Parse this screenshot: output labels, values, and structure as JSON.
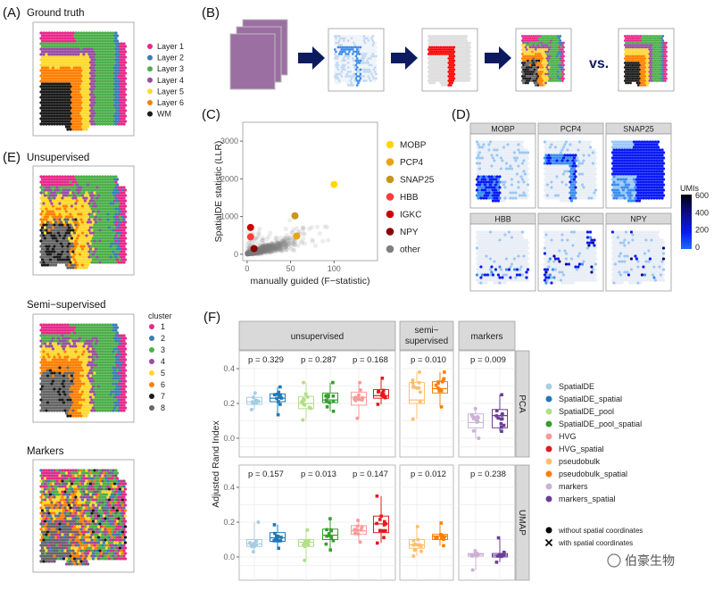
{
  "panel_labels": {
    "A": "(A)",
    "B": "(B)",
    "C": "(C)",
    "D": "(D)",
    "E": "(E)",
    "F": "(F)"
  },
  "panel_a": {
    "title": "Ground truth",
    "legend": [
      {
        "label": "Layer 1",
        "color": "#E7298A"
      },
      {
        "label": "Layer 2",
        "color": "#377EB8"
      },
      {
        "label": "Layer 3",
        "color": "#4DAF4A"
      },
      {
        "label": "Layer 4",
        "color": "#984EA3"
      },
      {
        "label": "Layer 5",
        "color": "#FFD92F"
      },
      {
        "label": "Layer 6",
        "color": "#FF7F00"
      },
      {
        "label": "WM",
        "color": "#1A1A1A"
      }
    ]
  },
  "panel_b": {
    "vs_label": "vs.",
    "arrow_color": "#0D1B5E",
    "highlight_color": "#FF0000"
  },
  "panel_d": {
    "genes": [
      "MOBP",
      "PCP4",
      "SNAP25",
      "HBB",
      "IGKC",
      "NPY"
    ],
    "colorbar": {
      "title": "UMIs",
      "ticks": [
        "600",
        "400",
        "200",
        "0"
      ],
      "range": [
        0,
        600
      ]
    }
  },
  "panel_e": {
    "titles": [
      "Unsupervised",
      "Semi−supervised",
      "Markers"
    ],
    "legend_title": "cluster",
    "clusters": [
      {
        "label": "1",
        "color": "#E7298A"
      },
      {
        "label": "2",
        "color": "#377EB8"
      },
      {
        "label": "3",
        "color": "#4DAF4A"
      },
      {
        "label": "4",
        "color": "#984EA3"
      },
      {
        "label": "5",
        "color": "#FFD92F"
      },
      {
        "label": "6",
        "color": "#FF7F00"
      },
      {
        "label": "7",
        "color": "#1A1A1A"
      },
      {
        "label": "8",
        "color": "#666666"
      }
    ]
  },
  "chart_data": [
    {
      "type": "scatter",
      "xlabel": "manually guided (F−statistic)",
      "ylabel": "SpatialDE statistic (LLR)",
      "xlim": [
        -5,
        150
      ],
      "ylim": [
        -170,
        3500
      ],
      "xticks": [
        "0",
        "50",
        "100"
      ],
      "yticks": [
        "0",
        "1000",
        "2000",
        "3000"
      ],
      "grid": false,
      "legend_position": "right",
      "highlighted": [
        {
          "name": "MOBP",
          "color": "#FFD700",
          "x": 100,
          "y": 1850
        },
        {
          "name": "PCP4",
          "color": "#E8A317",
          "x": 57,
          "y": 480
        },
        {
          "name": "SNAP25",
          "color": "#C8961E",
          "x": 55,
          "y": 1020
        },
        {
          "name": "HBB",
          "color": "#FF3B3B",
          "x": 4,
          "y": 460
        },
        {
          "name": "IGKC",
          "color": "#CC0000",
          "x": 4,
          "y": 710
        },
        {
          "name": "NPY",
          "color": "#8B0000",
          "x": 8,
          "y": 150
        }
      ],
      "other": {
        "name": "other",
        "color": "#808080"
      }
    },
    {
      "type": "box",
      "ylabel": "Adjusted Rand Index",
      "yticks": [
        "0.0",
        "0.2",
        "0.4"
      ],
      "ylim": [
        -0.08,
        0.5
      ],
      "column_facets": [
        {
          "lines": [
            "unsupervised"
          ]
        },
        {
          "lines": [
            "semi−",
            "supervised"
          ]
        },
        {
          "lines": [
            "markers"
          ]
        }
      ],
      "row_facets": [
        "PCA",
        "UMAP"
      ],
      "p_values": {
        "PCA": [
          "p = 0.329",
          "p = 0.287",
          "p = 0.168",
          "p = 0.010",
          "p = 0.009"
        ],
        "UMAP": [
          "p = 0.157",
          "p = 0.013",
          "p = 0.147",
          "p = 0.012",
          "p = 0.238"
        ]
      },
      "series": [
        {
          "name": "SpatialDE",
          "color": "#A6CEE3",
          "spatial": false,
          "PCA": [
            0.165,
            0.195,
            0.21,
            0.235,
            0.26
          ],
          "UMAP": [
            0.03,
            0.06,
            0.075,
            0.1,
            0.2
          ]
        },
        {
          "name": "SpatialDE_spatial",
          "color": "#1F78B4",
          "spatial": true,
          "PCA": [
            0.135,
            0.21,
            0.23,
            0.255,
            0.295
          ],
          "UMAP": [
            0.05,
            0.09,
            0.11,
            0.14,
            0.185
          ]
        },
        {
          "name": "SpatialDE_pool",
          "color": "#B2DF8A",
          "spatial": false,
          "PCA": [
            0.105,
            0.17,
            0.2,
            0.24,
            0.32
          ],
          "UMAP": [
            -0.02,
            0.06,
            0.085,
            0.1,
            0.155
          ]
        },
        {
          "name": "SpatialDE_pool_spatial",
          "color": "#33A02C",
          "spatial": true,
          "PCA": [
            0.155,
            0.205,
            0.22,
            0.26,
            0.32
          ],
          "UMAP": [
            0.04,
            0.1,
            0.125,
            0.16,
            0.22
          ]
        },
        {
          "name": "HVG",
          "color": "#FB9A99",
          "spatial": false,
          "PCA": [
            0.115,
            0.19,
            0.235,
            0.265,
            0.32
          ],
          "UMAP": [
            0.085,
            0.13,
            0.15,
            0.18,
            0.21
          ]
        },
        {
          "name": "HVG_spatial",
          "color": "#E31A1C",
          "spatial": true,
          "PCA": [
            0.195,
            0.23,
            0.245,
            0.28,
            0.345
          ],
          "UMAP": [
            0.08,
            0.14,
            0.19,
            0.235,
            0.35
          ]
        },
        {
          "name": "pseudobulk",
          "color": "#FDBF6F",
          "spatial": false,
          "PCA": [
            0.11,
            0.2,
            0.22,
            0.32,
            0.38
          ],
          "UMAP": [
            0.005,
            0.05,
            0.07,
            0.1,
            0.175
          ]
        },
        {
          "name": "pseudobulk_spatial",
          "color": "#FF7F00",
          "spatial": true,
          "PCA": [
            0.18,
            0.26,
            0.285,
            0.325,
            0.38
          ],
          "UMAP": [
            0.065,
            0.1,
            0.12,
            0.13,
            0.195
          ]
        },
        {
          "name": "markers",
          "color": "#CAB2D6",
          "spatial": false,
          "PCA": [
            0.0,
            0.06,
            0.09,
            0.14,
            0.17
          ],
          "UMAP": [
            -0.075,
            0.005,
            0.015,
            0.02,
            0.035
          ]
        },
        {
          "name": "markers_spatial",
          "color": "#6A3D9A",
          "spatial": true,
          "PCA": [
            0.04,
            0.06,
            0.13,
            0.165,
            0.25
          ],
          "UMAP": [
            -0.03,
            0.0,
            0.01,
            0.02,
            0.11
          ]
        }
      ],
      "shape_legend": [
        {
          "label": "without spatial coordinates",
          "shape": "circle"
        },
        {
          "label": "with spatial coordinates",
          "shape": "cross"
        }
      ]
    }
  ],
  "watermark": "伯豪生物"
}
